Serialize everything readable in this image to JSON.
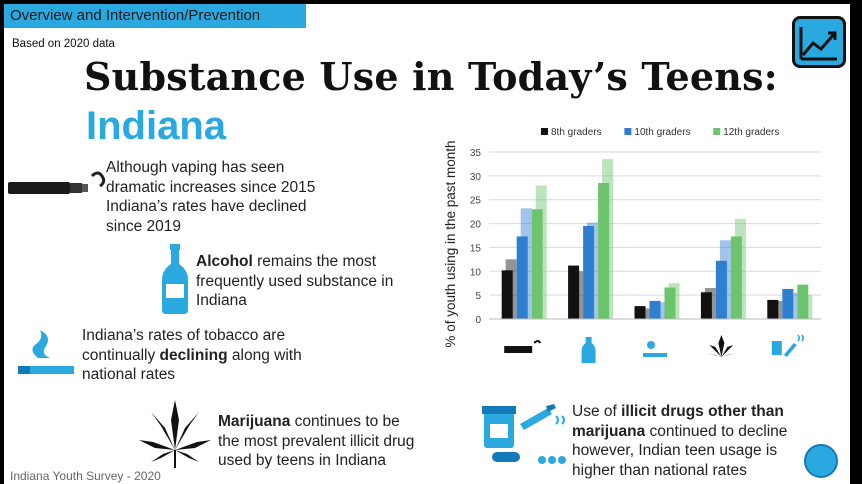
{
  "header": {
    "tab_label": "Overview and Intervention/Prevention",
    "based_on": "Based on 2020 data"
  },
  "title": "Substance Use in Today’s Teens:",
  "subtitle": "Indiana",
  "blocks": {
    "vaping": "Although vaping has seen dramatic increases since 2015 Indiana’s rates have declined since 2019",
    "alcohol_bold": "Alcohol",
    "alcohol_rest": " remains the most frequently used substance in Indiana",
    "tobacco_pre": "Indiana’s rates of tobacco are continually ",
    "tobacco_bold": "declining",
    "tobacco_post": " along with national rates",
    "marijuana_bold": "Marijuana",
    "marijuana_rest": " continues to be the most prevalent illicit drug used by teens in Indiana",
    "illicit_pre": "Use of ",
    "illicit_bold1": "illicit drugs other than",
    "illicit_bold2": "marijuana",
    "illicit_rest": " continued to decline however, Indian teen usage is higher than national rates"
  },
  "footer": "Indiana Youth Survey - 2020",
  "icons": [
    "trend-chart-icon",
    "vape-pen-icon",
    "bottle-icon",
    "cigarette-icon",
    "cannabis-leaf-icon",
    "pills-syringe-icon",
    "globe-icon"
  ],
  "colors": {
    "accent": "#29a9e0",
    "grade8": "#111111",
    "grade10": "#2f7fd1",
    "grade12": "#6cc46c"
  },
  "chart_data": {
    "type": "bar",
    "ylabel": "% of youth using in the past month",
    "ylim": [
      0,
      35
    ],
    "yticks": [
      0,
      5,
      10,
      15,
      20,
      25,
      30,
      35
    ],
    "categories": [
      "vape-pen-icon",
      "bottle-icon",
      "cigarette-icon",
      "cannabis-leaf-icon",
      "pills-syringe-icon"
    ],
    "legend_position": "top",
    "series": [
      {
        "name": "8th graders",
        "color": "#111111",
        "values": [
          10.2,
          11.2,
          2.7,
          5.6,
          4.0
        ],
        "national": [
          12.5,
          10.0,
          2.2,
          6.5,
          3.8
        ]
      },
      {
        "name": "10th graders",
        "color": "#2f7fd1",
        "values": [
          17.3,
          19.5,
          3.8,
          12.2,
          6.3
        ],
        "national": [
          23.2,
          20.2,
          3.5,
          16.5,
          5.5
        ]
      },
      {
        "name": "12th graders",
        "color": "#6cc46c",
        "values": [
          23.0,
          28.5,
          6.6,
          17.3,
          7.2
        ],
        "national": [
          28.0,
          33.5,
          7.5,
          21.0,
          5.0
        ]
      }
    ]
  }
}
